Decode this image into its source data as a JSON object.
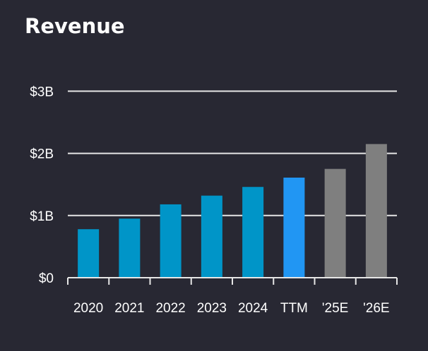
{
  "chart_data": {
    "type": "bar",
    "title": "Revenue",
    "categories": [
      "2020",
      "2021",
      "2022",
      "2023",
      "2024",
      "TTM",
      "'25E",
      "'26E"
    ],
    "values": [
      0.78,
      0.95,
      1.18,
      1.32,
      1.46,
      1.61,
      1.75,
      2.15
    ],
    "unit": "$B",
    "ylim": [
      0,
      3
    ],
    "yticks": [
      {
        "v": 0,
        "label": "$0"
      },
      {
        "v": 1,
        "label": "$1B"
      },
      {
        "v": 2,
        "label": "$2B"
      },
      {
        "v": 3,
        "label": "$3B"
      }
    ],
    "grid": true,
    "colors": [
      "#0095c8",
      "#0095c8",
      "#0095c8",
      "#0095c8",
      "#0095c8",
      "#2196f3",
      "#7f7f7f",
      "#7f7f7f"
    ],
    "background": "#282833"
  }
}
